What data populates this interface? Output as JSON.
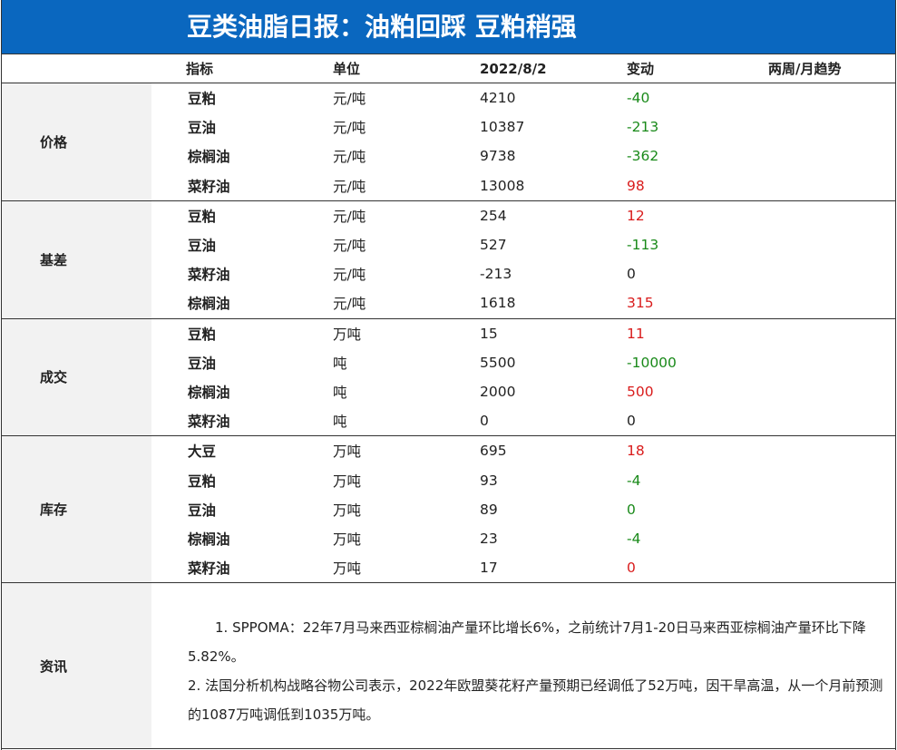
{
  "title": "豆类油脂日报：油粕回踩  豆粕稍强",
  "headers": {
    "indicator": "指标",
    "unit": "单位",
    "date": "2022/8/2",
    "change": "变动",
    "trend": "两周/月趋势"
  },
  "sections": [
    {
      "category": "价格",
      "rows": [
        {
          "name": "豆粕",
          "unit": "元/吨",
          "value": "4210",
          "change": "-40",
          "color": "green"
        },
        {
          "name": "豆油",
          "unit": "元/吨",
          "value": "10387",
          "change": "-213",
          "color": "green"
        },
        {
          "name": "棕榈油",
          "unit": "元/吨",
          "value": "9738",
          "change": "-362",
          "color": "green"
        },
        {
          "name": "菜籽油",
          "unit": "元/吨",
          "value": "13008",
          "change": "98",
          "color": "red"
        }
      ]
    },
    {
      "category": "基差",
      "rows": [
        {
          "name": "豆粕",
          "unit": "元/吨",
          "value": "254",
          "change": "12",
          "color": "red"
        },
        {
          "name": "豆油",
          "unit": "元/吨",
          "value": "527",
          "change": "-113",
          "color": "green"
        },
        {
          "name": "菜籽油",
          "unit": "元/吨",
          "value": "-213",
          "change": "0",
          "color": "neutral"
        },
        {
          "name": "棕榈油",
          "unit": "元/吨",
          "value": "1618",
          "change": "315",
          "color": "red"
        }
      ]
    },
    {
      "category": "成交",
      "rows": [
        {
          "name": "豆粕",
          "unit": "万吨",
          "value": "15",
          "change": "11",
          "color": "red"
        },
        {
          "name": "豆油",
          "unit": "吨",
          "value": "5500",
          "change": "-10000",
          "color": "green"
        },
        {
          "name": "棕榈油",
          "unit": "吨",
          "value": "2000",
          "change": "500",
          "color": "red"
        },
        {
          "name": "菜籽油",
          "unit": "吨",
          "value": "0",
          "change": "0",
          "color": "neutral"
        }
      ]
    },
    {
      "category": "库存",
      "rows": [
        {
          "name": "大豆",
          "unit": "万吨",
          "value": "695",
          "change": "18",
          "color": "red"
        },
        {
          "name": "豆粕",
          "unit": "万吨",
          "value": "93",
          "change": "-4",
          "color": "green"
        },
        {
          "name": "豆油",
          "unit": "万吨",
          "value": "89",
          "change": "0",
          "color": "green"
        },
        {
          "name": "棕榈油",
          "unit": "万吨",
          "value": "23",
          "change": "-4",
          "color": "green"
        },
        {
          "name": "菜籽油",
          "unit": "万吨",
          "value": "17",
          "change": "0",
          "color": "red"
        }
      ]
    }
  ],
  "news": {
    "category": "资讯",
    "items": [
      "　　1. SPPOMA：22年7月马来西亚棕榈油产量环比增长6%，之前统计7月1-20日马来西亚棕榈油产量环比下降5.82%。",
      "2. 法国分析机构战略谷物公司表示，2022年欧盟葵花籽产量预期已经调低了52万吨，因干旱高温，从一个月前预测的1087万吨调低到1035万吨。"
    ]
  },
  "colors": {
    "title_bg": "#0a67bf",
    "category_bg": "#f2f2f2",
    "up": "#d91c1c",
    "down": "#1a8a1a"
  }
}
